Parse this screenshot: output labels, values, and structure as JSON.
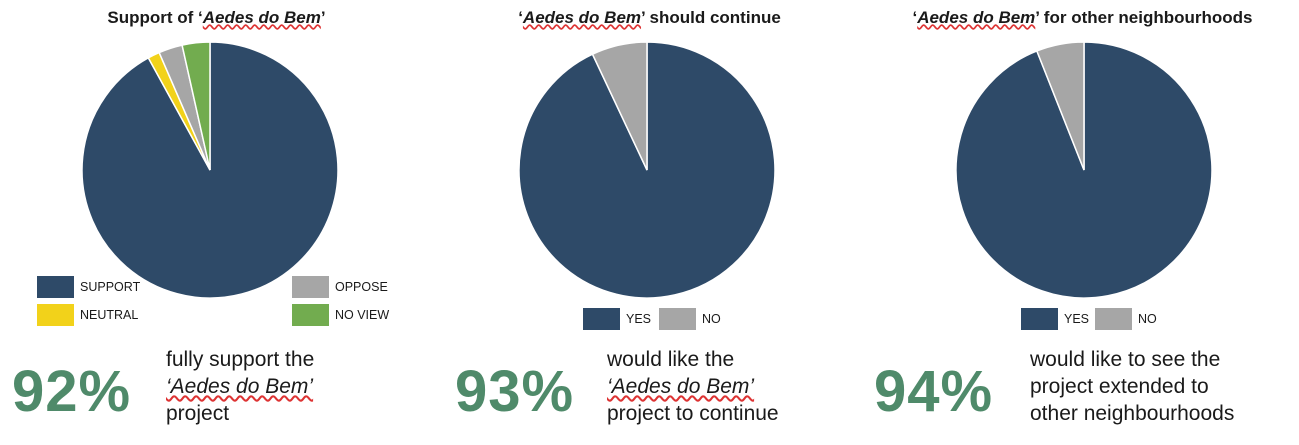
{
  "colors": {
    "support": "#2e4a68",
    "neutral": "#f2d21a",
    "oppose": "#a6a6a6",
    "noview": "#72ac4f",
    "stat": "#4f8a6a"
  },
  "chart_data": [
    {
      "type": "pie",
      "title_prefix": "Support of ‘",
      "title_italic": "Aedes do Bem",
      "title_suffix": "’",
      "slices": [
        {
          "label": "SUPPORT",
          "value": 92
        },
        {
          "label": "NEUTRAL",
          "value": 1.5
        },
        {
          "label": "OPPOSE",
          "value": 3
        },
        {
          "label": "NO VIEW",
          "value": 3.5
        }
      ],
      "stat": "92%",
      "desc": [
        "fully support the",
        "‘Aedes do Bem’",
        "project"
      ]
    },
    {
      "type": "pie",
      "title_prefix": "‘",
      "title_italic": "Aedes do Bem",
      "title_suffix": "’ should continue",
      "slices": [
        {
          "label": "YES",
          "value": 93
        },
        {
          "label": "NO",
          "value": 7
        }
      ],
      "stat": "93%",
      "desc": [
        "would like the",
        "‘Aedes do Bem’",
        "project to continue"
      ]
    },
    {
      "type": "pie",
      "title_prefix": "‘",
      "title_italic": "Aedes do Bem",
      "title_suffix": "’ for other neighbourhoods",
      "slices": [
        {
          "label": "YES",
          "value": 94
        },
        {
          "label": "NO",
          "value": 6
        }
      ],
      "stat": "94%",
      "desc": [
        "would like to see the",
        "project extended to",
        "other neighbourhoods"
      ]
    }
  ]
}
